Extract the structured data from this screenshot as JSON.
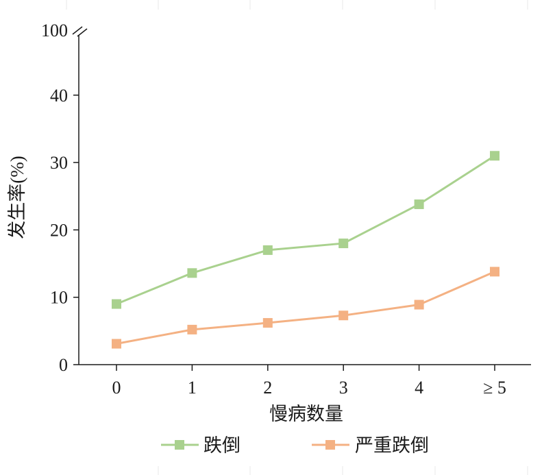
{
  "chart_data": {
    "type": "line",
    "categories": [
      "0",
      "1",
      "2",
      "3",
      "4",
      "≥ 5"
    ],
    "series": [
      {
        "name": "跌倒",
        "values": [
          9.0,
          13.6,
          17.0,
          18.0,
          23.8,
          31.0
        ],
        "color": "#a9d18e"
      },
      {
        "name": "严重跌倒",
        "values": [
          3.1,
          5.2,
          6.2,
          7.3,
          8.9,
          13.8
        ],
        "color": "#f4b183"
      }
    ],
    "xlabel": "慢病数量",
    "ylabel": "发生率(%)",
    "yticks": [
      0,
      10,
      20,
      30,
      40,
      100
    ],
    "ylim": [
      0,
      100
    ],
    "y_axis_break": [
      40,
      100
    ],
    "grid": false,
    "legend": "bottom"
  }
}
